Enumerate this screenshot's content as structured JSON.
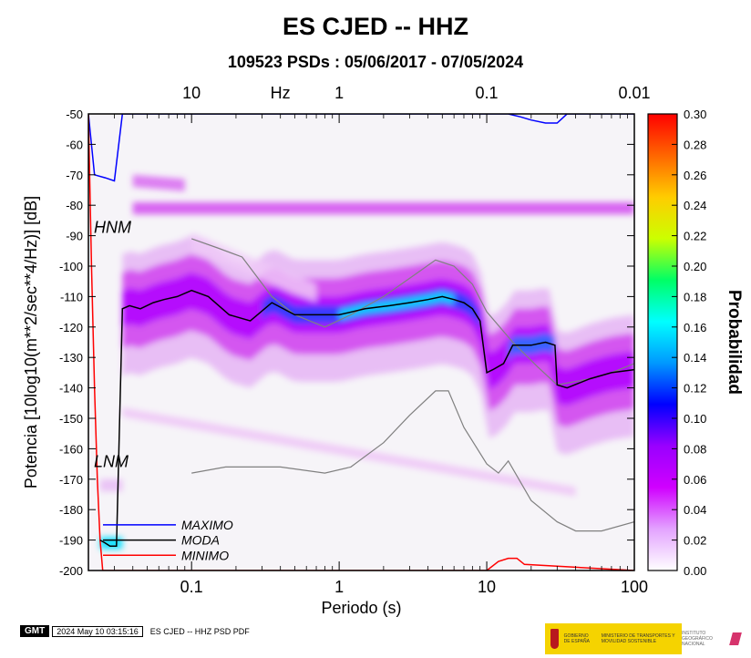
{
  "title": "ES CJED -- HHZ",
  "subtitle": "109523 PSDs : 05/06/2017 - 07/05/2024",
  "footer": {
    "logo_text": "GMT",
    "timestamp": "2024 May 10 03:15:16",
    "caption": "ES CJED -- HHZ PSD PDF"
  },
  "logos": {
    "ministry_1": "GOBIERNO DE ESPAÑA",
    "ministry_2": "MINISTERIO DE TRANSPORTES Y MOVILIDAD SOSTENIBLE",
    "institute": "INSTITUTO GEOGRÁFICO NACIONAL"
  },
  "chart_data": {
    "type": "heatmap",
    "xlabel": "Periodo (s)",
    "ylabel": "Potencia [10log10(m**2/sec**4/Hz)] [dB]",
    "x_scale": "log",
    "xlim": [
      0.02,
      100
    ],
    "ylim": [
      -200,
      -50
    ],
    "x_ticks": [
      0.1,
      1,
      10,
      100
    ],
    "x_tick_labels": [
      "0.1",
      "1",
      "10",
      "100"
    ],
    "y_ticks": [
      -200,
      -190,
      -180,
      -170,
      -160,
      -150,
      -140,
      -130,
      -120,
      -110,
      -100,
      -90,
      -80,
      -70,
      -60,
      -50
    ],
    "top_axis_label": "Hz",
    "top_ticks": [
      10,
      1,
      0.1,
      0.01
    ],
    "top_tick_labels": [
      "10",
      "1",
      "0.1",
      "0.01"
    ],
    "colorbar": {
      "label": "Probabilidad",
      "range": [
        0,
        0.3
      ],
      "ticks": [
        "0.00",
        "0.02",
        "0.04",
        "0.06",
        "0.08",
        "0.10",
        "0.12",
        "0.14",
        "0.16",
        "0.18",
        "0.20",
        "0.22",
        "0.24",
        "0.26",
        "0.28",
        "0.30"
      ],
      "colors": [
        "#ffffff",
        "#e3a3ff",
        "#d000ff",
        "#9900ff",
        "#0000ff",
        "#0099ff",
        "#00ffff",
        "#00ff66",
        "#ccff00",
        "#ffcc00",
        "#ff6600",
        "#ff0000"
      ]
    },
    "annotations": [
      "HNM",
      "LNM"
    ],
    "legend": {
      "placement": "bottom-left",
      "entries": [
        {
          "label": "MAXIMO",
          "color": "#0000ff"
        },
        {
          "label": "MODA",
          "color": "#000000"
        },
        {
          "label": "MINIMO",
          "color": "#ff0000"
        }
      ]
    },
    "series": [
      {
        "name": "MODA",
        "color": "#000000",
        "x": [
          0.024,
          0.026,
          0.028,
          0.031,
          0.034,
          0.038,
          0.045,
          0.055,
          0.065,
          0.08,
          0.1,
          0.13,
          0.18,
          0.25,
          0.35,
          0.5,
          0.7,
          1,
          1.5,
          2.2,
          3,
          4,
          5,
          6,
          7,
          8,
          9,
          10,
          11,
          13,
          15,
          20,
          25,
          29,
          30,
          35,
          50,
          70,
          100
        ],
        "y": [
          -190,
          -191,
          -192,
          -192,
          -114,
          -113,
          -114,
          -112,
          -111,
          -110,
          -108,
          -110,
          -116,
          -118,
          -112,
          -116,
          -116,
          -116,
          -114,
          -113,
          -112,
          -111,
          -110,
          -111,
          -112,
          -114,
          -118,
          -135,
          -134,
          -132,
          -126,
          -126,
          -125,
          -126,
          -139,
          -140,
          -137,
          -135,
          -134
        ]
      },
      {
        "name": "MAXIMO",
        "color": "#0000ff",
        "x": [
          0.02,
          0.022,
          0.026,
          0.03,
          0.034,
          0.05,
          10,
          12,
          14,
          17,
          20,
          25,
          30,
          35,
          40,
          100
        ],
        "y": [
          -50,
          -70,
          -71,
          -72,
          -50,
          -50,
          -50,
          -50,
          -50,
          -51,
          -52,
          -53,
          -53,
          -50,
          -50,
          -50
        ]
      },
      {
        "name": "MINIMO",
        "color": "#ff0000",
        "x": [
          0.02,
          0.021,
          0.022,
          0.023,
          0.024,
          0.025,
          0.026,
          0.1,
          1,
          10,
          12,
          14,
          16,
          18,
          100
        ],
        "y": [
          -50,
          -100,
          -140,
          -170,
          -190,
          -200,
          -200,
          -200,
          -200,
          -200,
          -197,
          -196,
          -196,
          -198,
          -200
        ]
      },
      {
        "name": "HNM",
        "color": "#808080",
        "x": [
          0.1,
          0.15,
          0.22,
          0.35,
          0.5,
          0.8,
          1.2,
          2,
          3,
          4.5,
          6,
          8,
          10,
          15,
          22,
          30,
          50,
          70,
          100
        ],
        "y": [
          -91,
          -94,
          -97,
          -110,
          -116,
          -120,
          -116,
          -110,
          -104,
          -98,
          -100,
          -106,
          -115,
          -125,
          -133,
          -139,
          -137,
          -135,
          -132
        ]
      },
      {
        "name": "LNM",
        "color": "#808080",
        "x": [
          0.1,
          0.17,
          0.4,
          0.8,
          1.2,
          2,
          3,
          4.5,
          5.5,
          7,
          10,
          12,
          14,
          20,
          30,
          40,
          60,
          100
        ],
        "y": [
          -168,
          -166,
          -166,
          -168,
          -166,
          -158,
          -149,
          -141,
          -141,
          -153,
          -165,
          -168,
          -164,
          -177,
          -184,
          -187,
          -187,
          -184
        ]
      }
    ]
  }
}
